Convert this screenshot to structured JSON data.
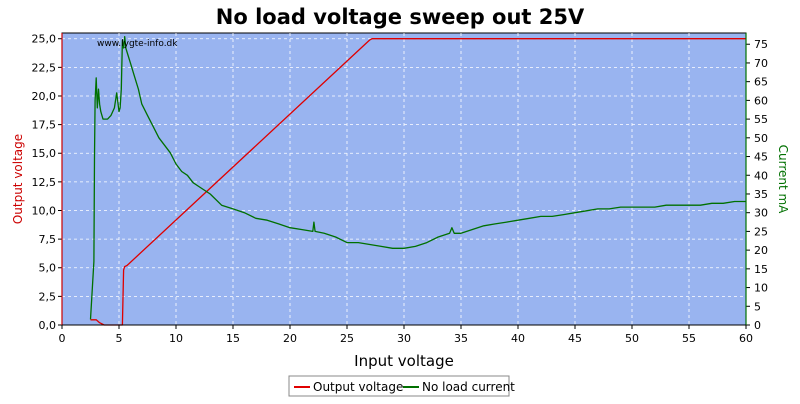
{
  "chart_data": {
    "type": "line",
    "title": "No load voltage sweep out 25V",
    "watermark": "www.lygte-info.dk",
    "xlabel": "Input voltage",
    "ylabel_left": "Output voltage",
    "ylabel_right": "Current mA",
    "xlim": [
      0,
      60
    ],
    "ylim_left": [
      0,
      25.5
    ],
    "ylim_right": [
      0,
      78
    ],
    "x_ticks": [
      0,
      5,
      10,
      15,
      20,
      25,
      30,
      35,
      40,
      45,
      50,
      55,
      60
    ],
    "y_left_ticks": [
      "0,0",
      "2,5",
      "5,0",
      "7,5",
      "10,0",
      "12,5",
      "15,0",
      "17,5",
      "20,0",
      "22,5",
      "25,0"
    ],
    "y_left_tick_values": [
      0,
      2.5,
      5,
      7.5,
      10,
      12.5,
      15,
      17.5,
      20,
      22.5,
      25
    ],
    "y_right_ticks": [
      0,
      5,
      10,
      15,
      20,
      25,
      30,
      35,
      40,
      45,
      50,
      55,
      60,
      65,
      70,
      75
    ],
    "grid": true,
    "legend_position": "bottom-center",
    "colors": {
      "plot_bg": "#99b4f0",
      "voltage": "#e00000",
      "current": "#007000",
      "left_axis": "#cc0000",
      "right_axis": "#007000",
      "grid": "#ffffff"
    },
    "series": [
      {
        "name": "Output voltage",
        "axis": "left",
        "x": [
          2.5,
          3.0,
          3.3,
          3.7,
          4.2,
          5.0,
          5.3,
          5.4,
          5.5,
          5.7,
          27.0,
          27.2,
          60.0
        ],
        "y": [
          0.45,
          0.45,
          0.2,
          0.0,
          0.0,
          0.0,
          0.0,
          4.8,
          5.1,
          5.2,
          24.9,
          25.0,
          25.0
        ]
      },
      {
        "name": "No load current",
        "axis": "right",
        "x": [
          2.5,
          2.8,
          2.85,
          2.9,
          3.0,
          3.1,
          3.2,
          3.3,
          3.4,
          3.6,
          3.8,
          4.0,
          4.3,
          4.6,
          4.8,
          5.0,
          5.1,
          5.2,
          5.3,
          5.4,
          5.5,
          5.6,
          5.8,
          6.0,
          6.3,
          6.7,
          7.0,
          7.5,
          8.0,
          8.5,
          9.0,
          9.5,
          10.0,
          10.5,
          11.0,
          11.5,
          12.0,
          13.0,
          14.0,
          15.0,
          16.0,
          17.0,
          18.0,
          19.0,
          20.0,
          21.0,
          22.0,
          22.1,
          22.2,
          23.0,
          24.0,
          25.0,
          26.0,
          27.0,
          28.0,
          29.0,
          30.0,
          31.0,
          32.0,
          33.0,
          34.0,
          34.2,
          34.4,
          35.0,
          36.0,
          37.0,
          38.0,
          39.0,
          40.0,
          41.0,
          42.0,
          43.0,
          44.0,
          45.0,
          46.0,
          47.0,
          48.0,
          49.0,
          50.0,
          51.0,
          52.0,
          53.0,
          54.0,
          55.0,
          56.0,
          57.0,
          58.0,
          59.0,
          60.0
        ],
        "y": [
          1.5,
          17.0,
          45.0,
          60.0,
          66.0,
          58.0,
          63.0,
          59.0,
          57.0,
          55.0,
          55.0,
          55.0,
          56.0,
          58.0,
          62.0,
          57.0,
          58.0,
          63.0,
          76.0,
          74.0,
          77.0,
          74.0,
          72.0,
          70.0,
          67.0,
          63.0,
          59.0,
          56.0,
          53.0,
          50.0,
          48.0,
          46.0,
          43.0,
          41.0,
          40.0,
          38.0,
          37.0,
          35.0,
          32.0,
          31.0,
          30.0,
          28.5,
          28.0,
          27.0,
          26.0,
          25.5,
          25.0,
          27.5,
          25.0,
          24.5,
          23.5,
          22.0,
          22.0,
          21.5,
          21.0,
          20.5,
          20.5,
          21.0,
          22.0,
          23.5,
          24.5,
          26.0,
          24.5,
          24.5,
          25.5,
          26.5,
          27.0,
          27.5,
          28.0,
          28.5,
          29.0,
          29.0,
          29.5,
          30.0,
          30.5,
          31.0,
          31.0,
          31.5,
          31.5,
          31.5,
          31.5,
          32.0,
          32.0,
          32.0,
          32.0,
          32.5,
          32.5,
          33.0,
          33.0
        ]
      }
    ]
  }
}
